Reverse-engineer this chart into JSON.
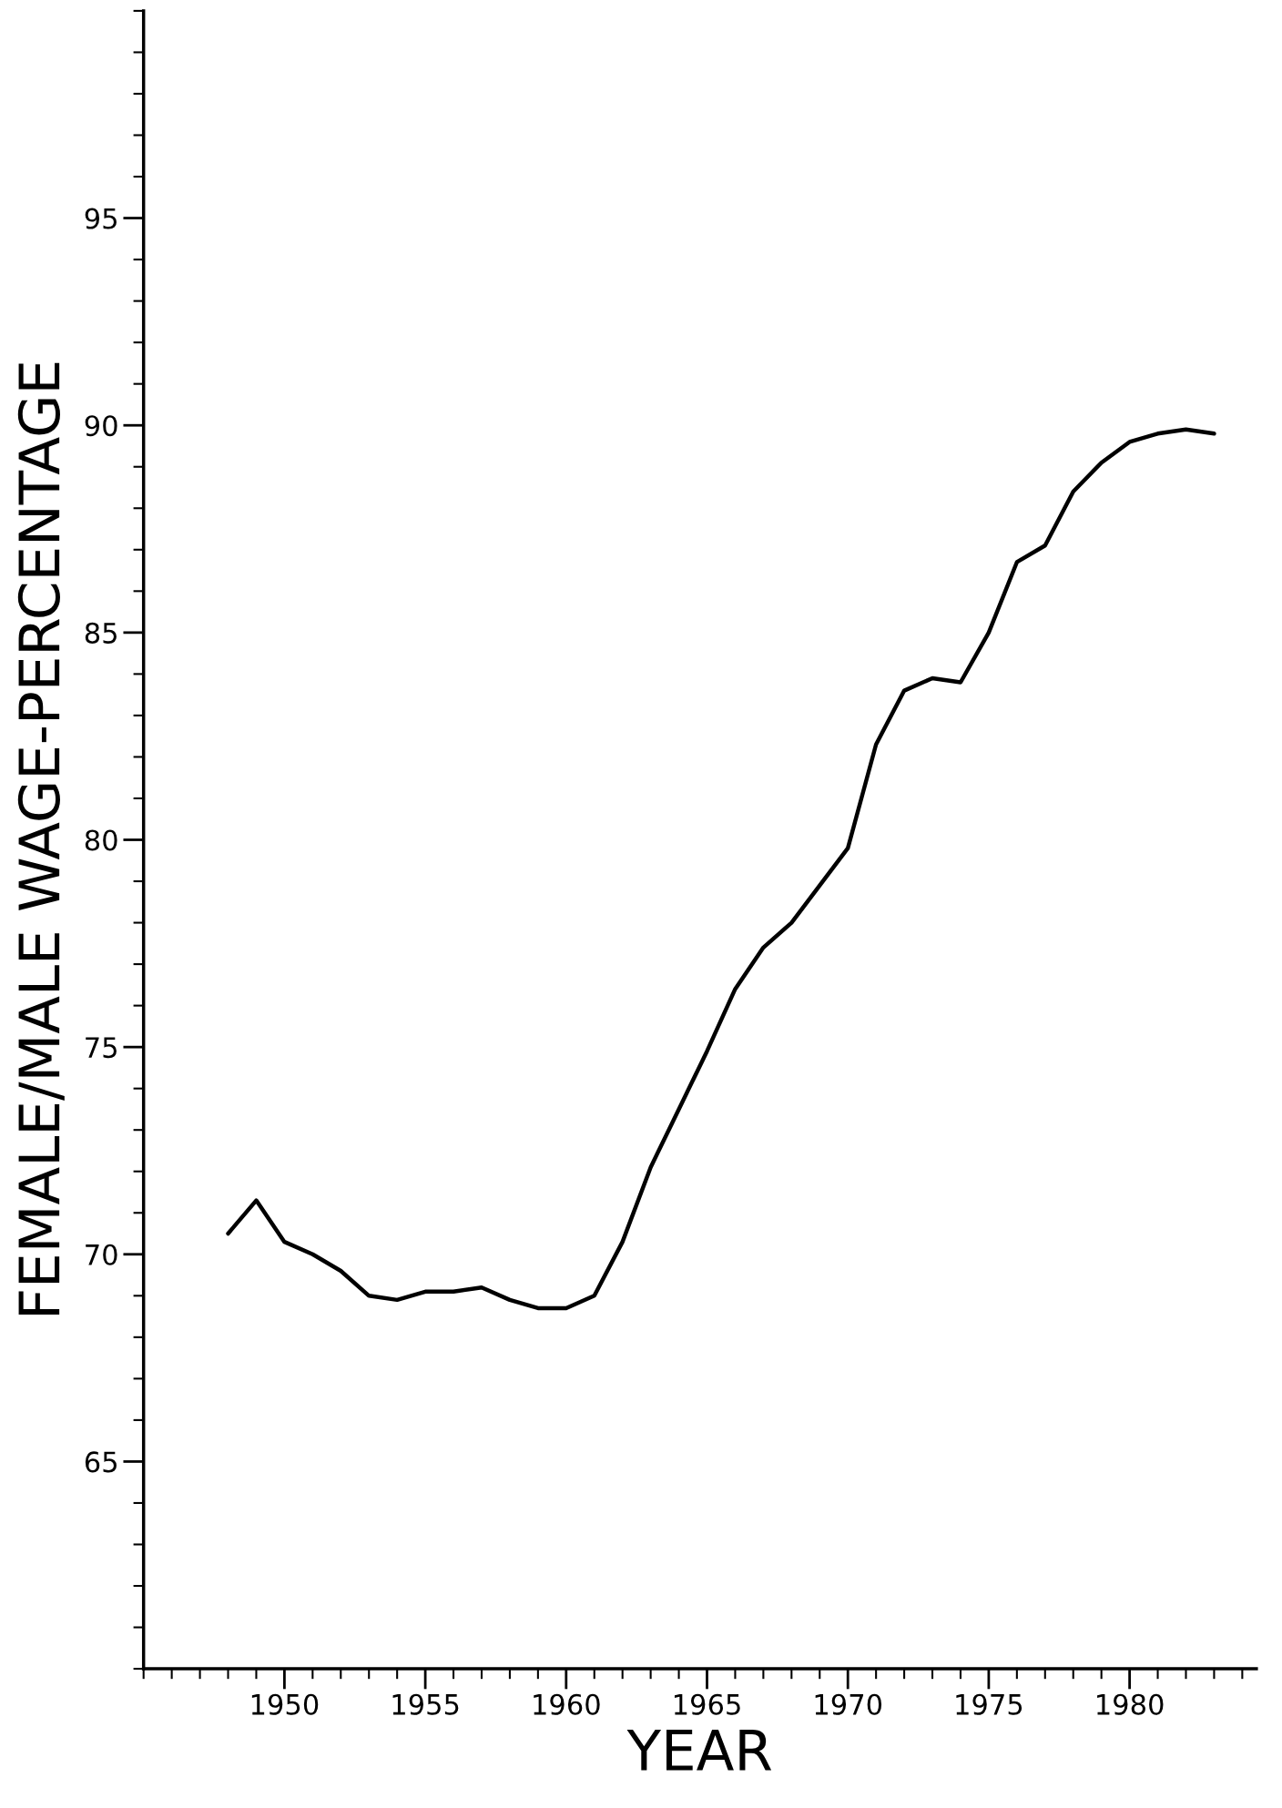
{
  "chart_data": {
    "type": "line",
    "xlabel": "YEAR",
    "ylabel": "FEMALE/MALE WAGE-PERCENTAGE",
    "x": [
      1948,
      1949,
      1950,
      1951,
      1952,
      1953,
      1954,
      1955,
      1956,
      1957,
      1958,
      1959,
      1960,
      1961,
      1962,
      1963,
      1964,
      1965,
      1966,
      1967,
      1968,
      1969,
      1970,
      1971,
      1972,
      1973,
      1974,
      1975,
      1976,
      1977,
      1978,
      1979,
      1980,
      1981,
      1982,
      1983
    ],
    "series": [
      {
        "color": "#000000",
        "values": [
          70.5,
          71.3,
          70.3,
          70.0,
          69.6,
          69.0,
          68.9,
          69.1,
          69.1,
          69.2,
          68.9,
          68.7,
          68.7,
          69.0,
          70.3,
          72.1,
          73.5,
          74.9,
          76.4,
          77.4,
          78.0,
          78.9,
          79.8,
          82.3,
          83.6,
          83.9,
          83.8,
          85.0,
          86.7,
          87.1,
          88.4,
          89.1,
          89.6,
          89.8,
          89.9,
          89.8
        ]
      }
    ],
    "xlim": [
      1945,
      1984.5
    ],
    "xticks": [
      1950,
      1955,
      1960,
      1965,
      1970,
      1975,
      1980
    ],
    "ylim": [
      60,
      100
    ],
    "yticks": [
      65,
      70,
      75,
      80,
      85,
      90,
      95
    ],
    "grid": false,
    "legend": false,
    "marker": "none",
    "line_style": "solid"
  }
}
